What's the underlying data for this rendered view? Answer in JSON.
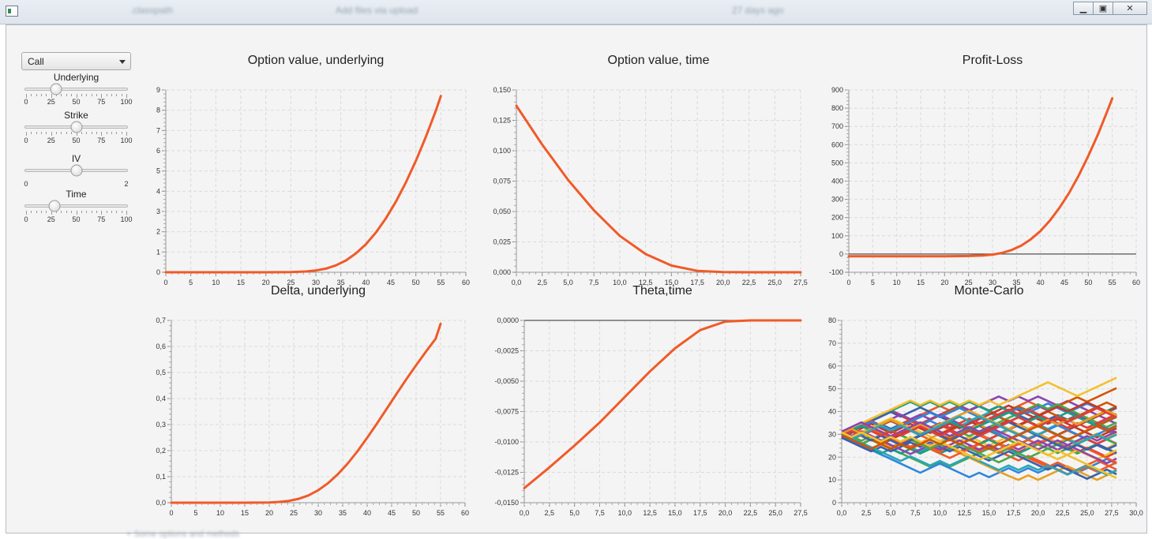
{
  "window": {
    "bg_text": [
      ".classpath",
      "Add files via upload",
      "27 days ago"
    ],
    "bottom_text": "+ Some options and methods"
  },
  "controls": {
    "option_type": "Call",
    "sliders": [
      {
        "label": "Underlying",
        "ticks": [
          "0",
          "25",
          "50",
          "75",
          "100"
        ],
        "min": 0,
        "max": 100,
        "value": 30
      },
      {
        "label": "Strike",
        "ticks": [
          "0",
          "25",
          "50",
          "75",
          "100"
        ],
        "min": 0,
        "max": 100,
        "value": 50
      },
      {
        "label": "IV",
        "ticks": [
          "0",
          "2"
        ],
        "min": 0,
        "max": 2,
        "value": 1.0
      },
      {
        "label": "Time",
        "ticks": [
          "0",
          "25",
          "50",
          "75",
          "100"
        ],
        "min": 0,
        "max": 100,
        "value": 28
      }
    ]
  },
  "colors": {
    "curve": "#f05a28",
    "axis": "#666666"
  },
  "chart_data": [
    {
      "type": "line",
      "title": "Option value, underlying",
      "xlim": [
        0,
        60
      ],
      "ylim": [
        0,
        9
      ],
      "xticks": [
        "0",
        "5",
        "10",
        "15",
        "20",
        "25",
        "30",
        "35",
        "40",
        "45",
        "50",
        "55",
        "60"
      ],
      "yticks": [
        "0",
        "1",
        "2",
        "3",
        "4",
        "5",
        "6",
        "7",
        "8",
        "9"
      ],
      "series": [
        {
          "x": [
            0,
            20,
            25,
            28,
            30,
            32,
            34,
            36,
            38,
            40,
            42,
            44,
            46,
            48,
            50,
            52,
            54,
            55
          ],
          "y": [
            0,
            0,
            0.01,
            0.04,
            0.09,
            0.18,
            0.34,
            0.58,
            0.93,
            1.38,
            1.96,
            2.66,
            3.48,
            4.43,
            5.5,
            6.68,
            7.98,
            8.7
          ]
        }
      ],
      "zero_line": false
    },
    {
      "type": "line",
      "title": "Option value, time",
      "xlim": [
        0,
        27.5
      ],
      "ylim": [
        0,
        0.15
      ],
      "xticks": [
        "0,0",
        "2,5",
        "5,0",
        "7,5",
        "10,0",
        "12,5",
        "15,0",
        "17,5",
        "20,0",
        "22,5",
        "25,0",
        "27,5"
      ],
      "yticks": [
        "0,000",
        "0,025",
        "0,050",
        "0,075",
        "0,100",
        "0,125",
        "0,150"
      ],
      "series": [
        {
          "x": [
            0,
            2.5,
            5,
            7.5,
            10,
            12.5,
            15,
            17.5,
            20,
            22.5,
            25,
            27.5
          ],
          "y": [
            0.137,
            0.105,
            0.076,
            0.051,
            0.03,
            0.015,
            0.0055,
            0.0012,
            0.0001,
            0,
            0,
            0
          ]
        }
      ],
      "zero_line": false
    },
    {
      "type": "line",
      "title": "Profit-Loss",
      "xlim": [
        0,
        60
      ],
      "ylim": [
        -100,
        900
      ],
      "xticks": [
        "0",
        "5",
        "10",
        "15",
        "20",
        "25",
        "30",
        "35",
        "40",
        "45",
        "50",
        "55",
        "60"
      ],
      "yticks": [
        "-100",
        "0",
        "100",
        "200",
        "300",
        "400",
        "500",
        "600",
        "700",
        "800",
        "900"
      ],
      "series": [
        {
          "x": [
            0,
            20,
            25,
            28,
            30,
            32,
            34,
            36,
            38,
            40,
            42,
            44,
            46,
            48,
            50,
            52,
            54,
            55
          ],
          "y": [
            -12,
            -12,
            -11,
            -8,
            -3,
            6,
            22,
            46,
            81,
            126,
            184,
            254,
            336,
            431,
            538,
            656,
            786,
            854
          ]
        }
      ],
      "zero_line": true
    },
    {
      "type": "line",
      "title": "Delta, underlying",
      "xlim": [
        0,
        60
      ],
      "ylim": [
        0,
        0.7
      ],
      "xticks": [
        "0",
        "5",
        "10",
        "15",
        "20",
        "25",
        "30",
        "35",
        "40",
        "45",
        "50",
        "55",
        "60"
      ],
      "yticks": [
        "0,0",
        "0,1",
        "0,2",
        "0,3",
        "0,4",
        "0,5",
        "0,6",
        "0,7"
      ],
      "series": [
        {
          "x": [
            0,
            15,
            20,
            22,
            24,
            26,
            28,
            30,
            32,
            34,
            36,
            38,
            40,
            42,
            44,
            46,
            48,
            50,
            52,
            54,
            55
          ],
          "y": [
            0,
            0,
            0.001,
            0.003,
            0.007,
            0.015,
            0.028,
            0.048,
            0.075,
            0.109,
            0.15,
            0.197,
            0.249,
            0.304,
            0.361,
            0.418,
            0.474,
            0.528,
            0.58,
            0.63,
            0.687
          ]
        }
      ],
      "zero_line": false
    },
    {
      "type": "line",
      "title": "Theta,time",
      "xlim": [
        0,
        27.5
      ],
      "ylim": [
        -0.015,
        0
      ],
      "xticks": [
        "0,0",
        "2,5",
        "5,0",
        "7,5",
        "10,0",
        "12,5",
        "15,0",
        "17,5",
        "20,0",
        "22,5",
        "25,0",
        "27,5"
      ],
      "yticks": [
        "-0,0150",
        "-0,0125",
        "-0,0100",
        "-0,0075",
        "-0,0050",
        "-0,0025",
        "0,0000"
      ],
      "series": [
        {
          "x": [
            0,
            2.5,
            5,
            7.5,
            10,
            12.5,
            15,
            17.5,
            20,
            22.5,
            25,
            27.5
          ],
          "y": [
            -0.0138,
            -0.0121,
            -0.0103,
            -0.0084,
            -0.0063,
            -0.0042,
            -0.0023,
            -0.0008,
            -0.0001,
            0,
            0,
            0
          ]
        }
      ],
      "zero_line": true
    },
    {
      "type": "line",
      "title": "Monte-Carlo",
      "xlim": [
        0,
        30
      ],
      "ylim": [
        0,
        80
      ],
      "xticks": [
        "0,0",
        "2,5",
        "5,0",
        "7,5",
        "10,0",
        "12,5",
        "15,0",
        "17,5",
        "20,0",
        "22,5",
        "25,0",
        "27,5",
        "30,0"
      ],
      "yticks": [
        "0",
        "10",
        "20",
        "30",
        "40",
        "50",
        "60",
        "70",
        "80"
      ],
      "paths": 45,
      "start": 30,
      "steps": 28,
      "colors": [
        "#f05a28",
        "#e8a020",
        "#4aa84a",
        "#3a5fb0",
        "#8e44ad",
        "#e03c3c",
        "#2aa6b8",
        "#f2c12e",
        "#d35400",
        "#2e86de",
        "#c0392b",
        "#16a085"
      ],
      "zero_line": false
    }
  ]
}
